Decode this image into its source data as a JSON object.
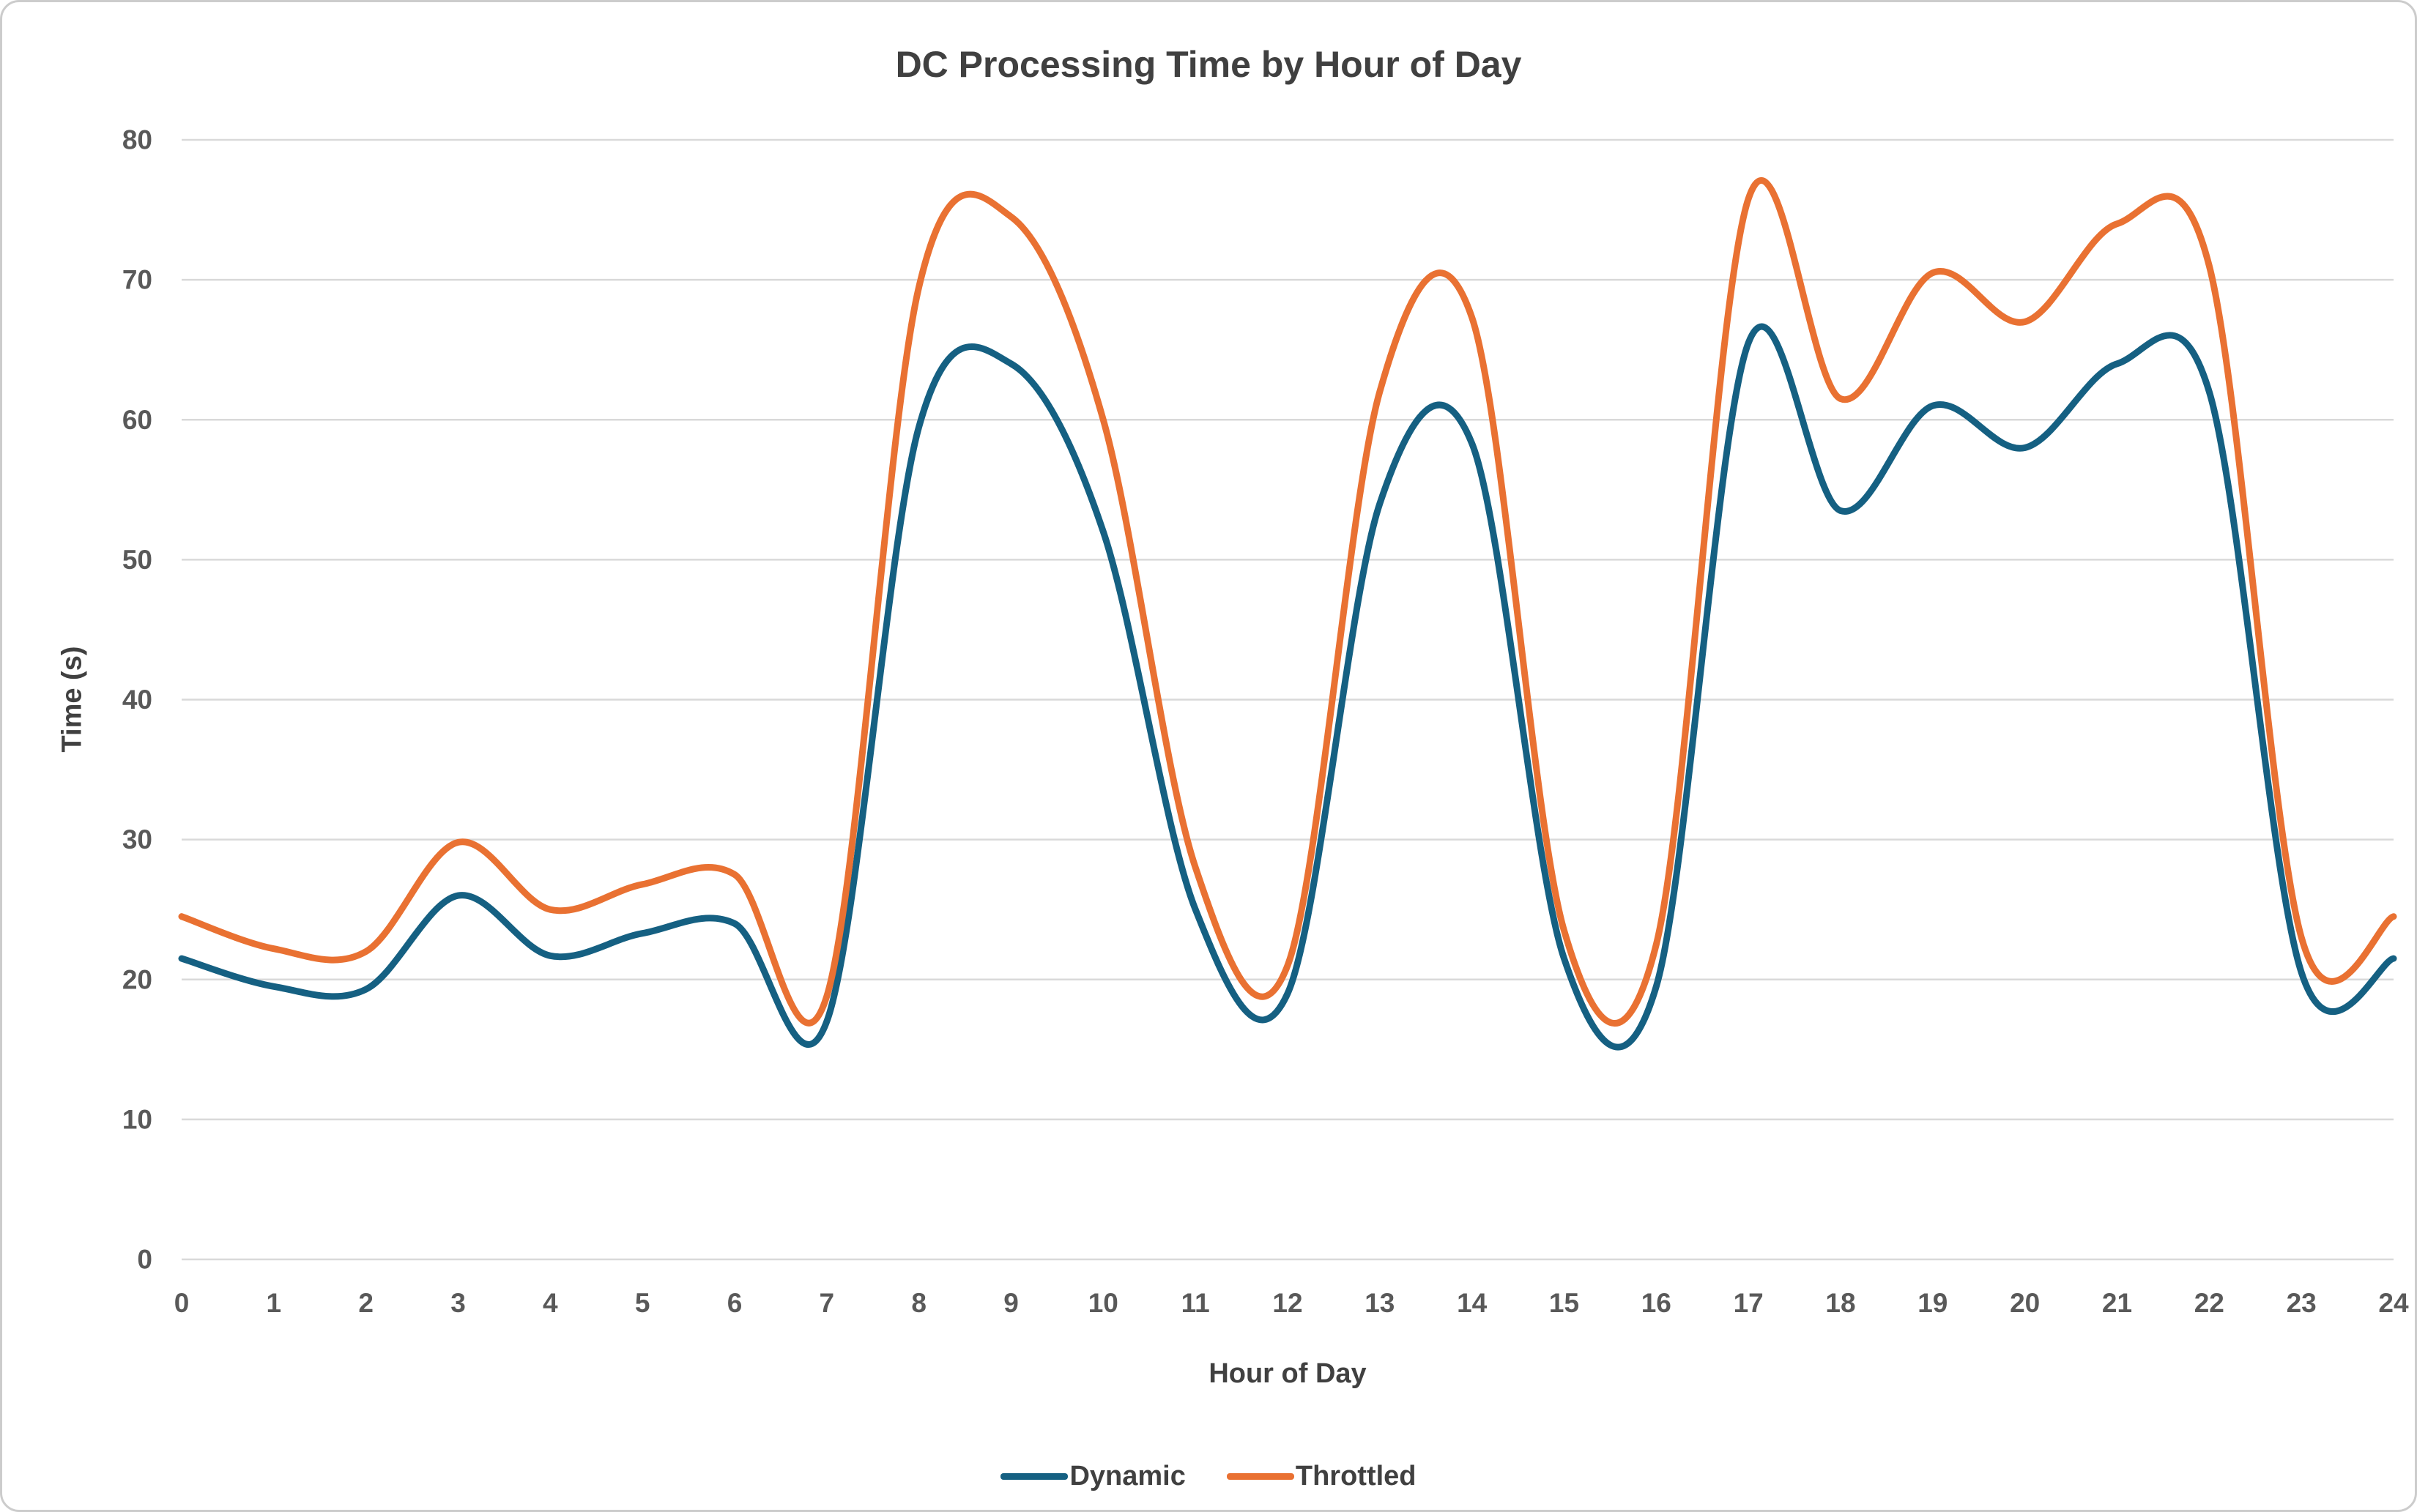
{
  "chart_data": {
    "type": "line",
    "title": "DC Processing Time by Hour of Day",
    "xlabel": "Hour of Day",
    "ylabel": "Time (s)",
    "xlim": [
      0,
      24
    ],
    "ylim": [
      0,
      80
    ],
    "xticks": [
      0,
      1,
      2,
      3,
      4,
      5,
      6,
      7,
      8,
      9,
      10,
      11,
      12,
      13,
      14,
      15,
      16,
      17,
      18,
      19,
      20,
      21,
      22,
      23,
      24
    ],
    "yticks": [
      0,
      10,
      20,
      30,
      40,
      50,
      60,
      70,
      80
    ],
    "grid": "horizontal",
    "gridline_color": "#D9D9D9",
    "smooth": true,
    "legend_position": "bottom",
    "x": [
      0,
      1,
      2,
      3,
      4,
      5,
      6,
      7,
      8,
      9,
      10,
      11,
      12,
      13,
      14,
      15,
      16,
      17,
      18,
      19,
      20,
      21,
      22,
      23,
      24
    ],
    "series": [
      {
        "name": "Dynamic",
        "color": "#156082",
        "values": [
          21.5,
          19.5,
          19.3,
          26,
          21.7,
          23.3,
          24,
          17,
          59.5,
          64,
          52,
          25,
          19,
          54,
          58.3,
          21.5,
          19.5,
          65.5,
          53.5,
          61,
          58,
          64,
          62,
          20.5,
          21.5
        ]
      },
      {
        "name": "Throttled",
        "color": "#E97132",
        "values": [
          24.5,
          22.2,
          22,
          29.8,
          25,
          26.8,
          27.5,
          18.8,
          69.5,
          74.5,
          60,
          28,
          21,
          62,
          67.3,
          23.5,
          22.5,
          75.8,
          61.5,
          70.5,
          67,
          74,
          71,
          23,
          24.5
        ]
      }
    ]
  }
}
